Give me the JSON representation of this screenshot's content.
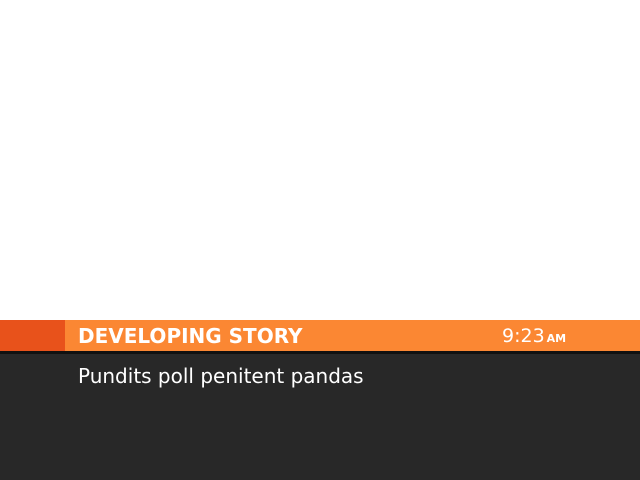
{
  "banner": {
    "label": "DEVELOPING STORY",
    "time": "9:23",
    "ampm": "AM"
  },
  "headline": {
    "text": "Pundits poll penitent pandas"
  },
  "colors": {
    "banner": "#fb8733",
    "banner_accent": "#e8521b",
    "panel": "#282828",
    "divider": "#111111",
    "text": "#ffffff"
  }
}
